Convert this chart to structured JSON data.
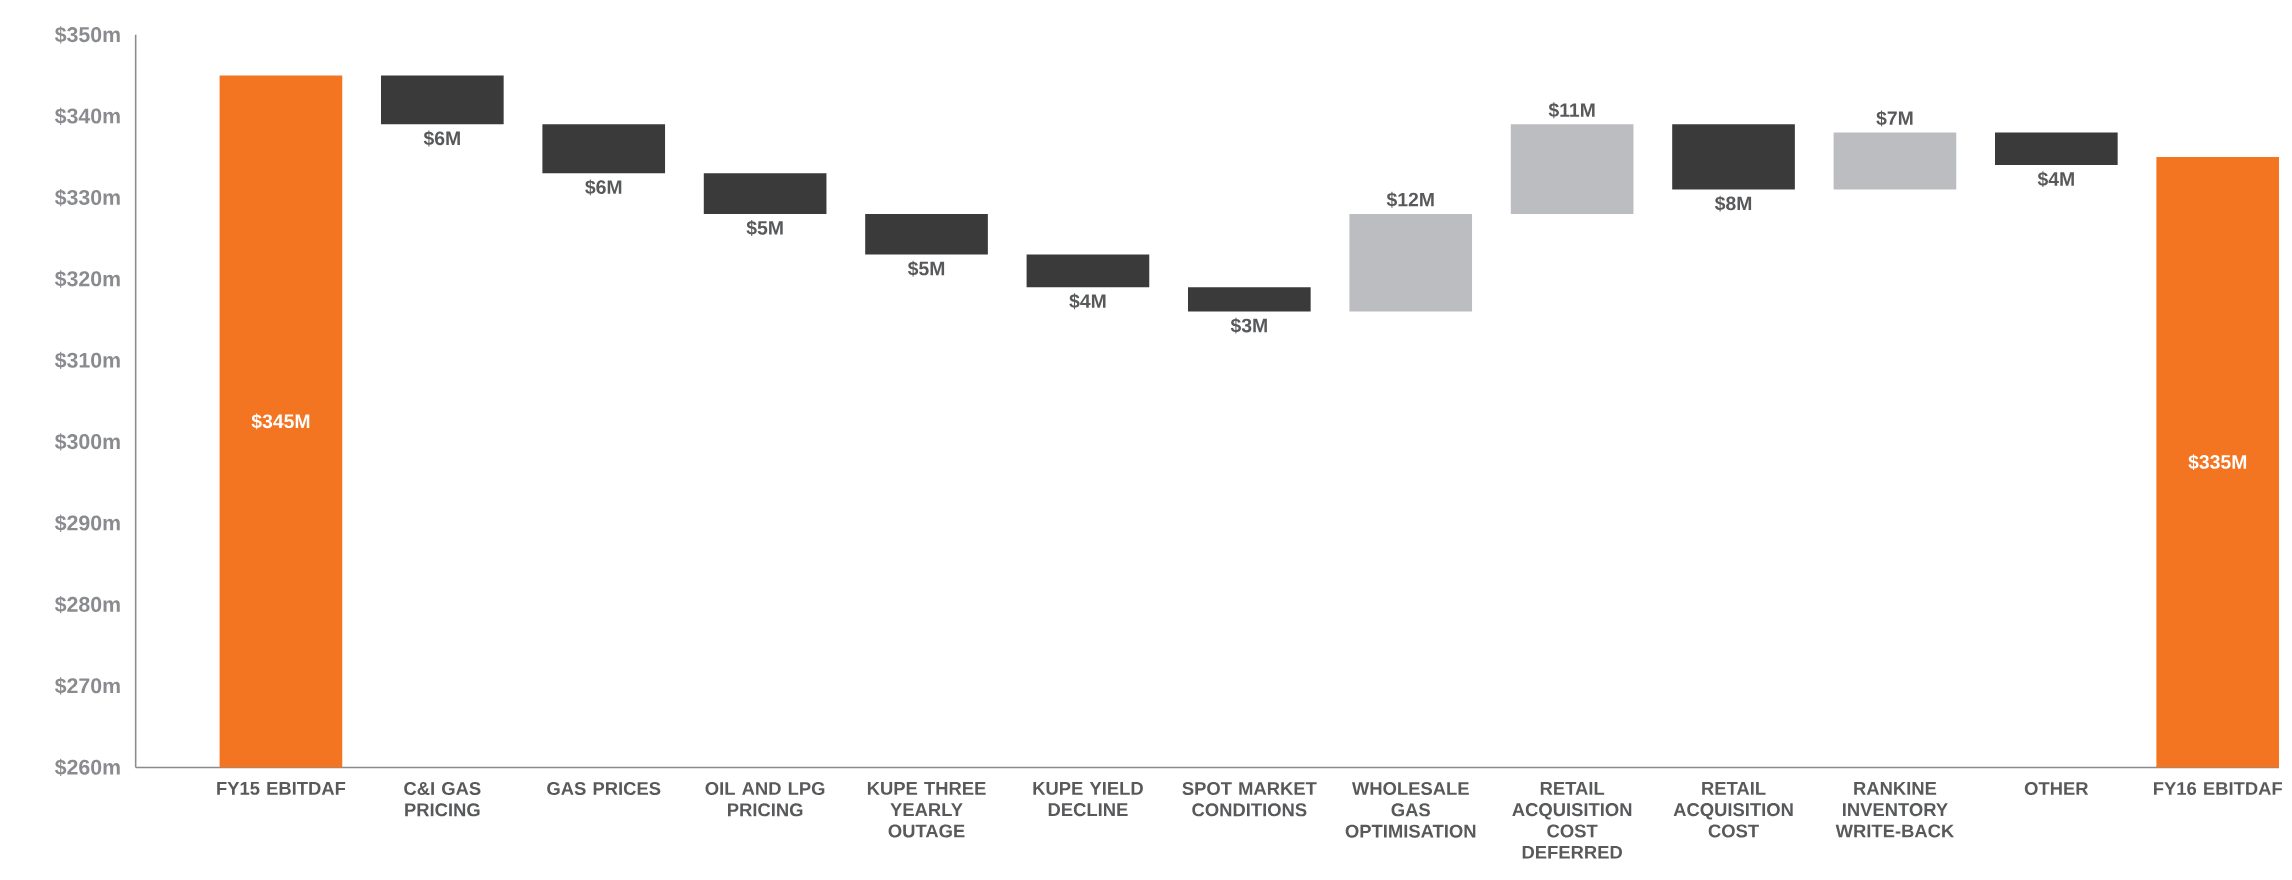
{
  "chart_data": {
    "type": "bar",
    "categories": [
      "FY15 EBITDAF",
      "C&I GAS PRICING",
      "GAS PRICES",
      "OIL AND LPG PRICING",
      "KUPE THREE YEARLY OUTAGE",
      "KUPE YIELD DECLINE",
      "SPOT MARKET CONDITIONS",
      "WHOLESALE GAS OPTIMISATION",
      "RETAIL ACQUISITION COST DEFERRED",
      "RETAIL ACQUISITION COST",
      "RANKINE INVENTORY WRITE-BACK",
      "OTHER",
      "FY16 EBITDAF"
    ],
    "values": [
      345,
      6,
      6,
      5,
      5,
      4,
      3,
      12,
      11,
      8,
      7,
      4,
      335
    ],
    "base": [
      null,
      339,
      333,
      328,
      323,
      319,
      316,
      316,
      328,
      331,
      331,
      334,
      null
    ],
    "colors": [
      "#f47521",
      "#3a3a3a",
      "#3a3a3a",
      "#3a3a3a",
      "#3a3a3a",
      "#3a3a3a",
      "#3a3a3a",
      "#bcbdc0",
      "#bcbdc0",
      "#3a3a3a",
      "#bcbdc0",
      "#3a3a3a",
      "#f47521"
    ],
    "value_labels": [
      "$345M",
      "$6M",
      "$6M",
      "$5M",
      "$5M",
      "$4M",
      "$3M",
      "$12M",
      "$11M",
      "$8M",
      "$7M",
      "$4M",
      "$335M"
    ],
    "ylim": [
      260,
      350
    ],
    "yticks": [
      {
        "value": 260,
        "label": "$260m"
      },
      {
        "value": 270,
        "label": "$270m"
      },
      {
        "value": 280,
        "label": "$280m"
      },
      {
        "value": 290,
        "label": "$290m"
      },
      {
        "value": 300,
        "label": "$300m"
      },
      {
        "value": 310,
        "label": "$310m"
      },
      {
        "value": 320,
        "label": "$320m"
      },
      {
        "value": 330,
        "label": "$330m"
      },
      {
        "value": 340,
        "label": "$340m"
      },
      {
        "value": 350,
        "label": "$350m"
      }
    ],
    "grid": false
  }
}
